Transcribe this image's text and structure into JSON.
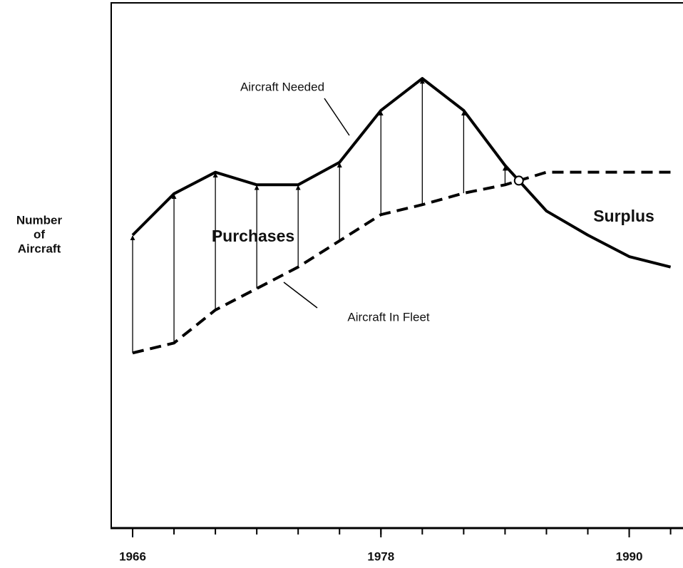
{
  "chart_data": {
    "type": "line",
    "ylabel": [
      "Number",
      "of",
      "Aircraft"
    ],
    "x": [
      1966,
      1968,
      1970,
      1972,
      1974,
      1976,
      1978,
      1980,
      1982,
      1984,
      1986,
      1988,
      1990,
      1992
    ],
    "series": [
      {
        "name": "Aircraft Needed",
        "color": "#000000",
        "dash": false,
        "values": [
          55.8,
          63.7,
          67.8,
          65.4,
          65.4,
          69.7,
          79.6,
          85.7,
          79.6,
          69.1,
          60.4,
          55.8,
          51.7,
          49.7
        ]
      },
      {
        "name": "Aircraft In Fleet",
        "color": "#000000",
        "dash": true,
        "values": [
          33.3,
          35.2,
          41.5,
          45.6,
          49.7,
          54.7,
          59.7,
          61.6,
          63.8,
          65.4,
          67.8,
          67.8,
          67.8,
          67.8
        ]
      }
    ],
    "annotations": [
      "Purchases",
      "Surplus"
    ],
    "xlim": [
      1965,
      1992.6
    ],
    "ylim": [
      0,
      100
    ],
    "xticks": [
      1966,
      1978,
      1990
    ],
    "minor_xticks": [
      1966,
      1968,
      1970,
      1972,
      1974,
      1976,
      1978,
      1980,
      1982,
      1984,
      1986,
      1988,
      1990,
      1992
    ]
  }
}
